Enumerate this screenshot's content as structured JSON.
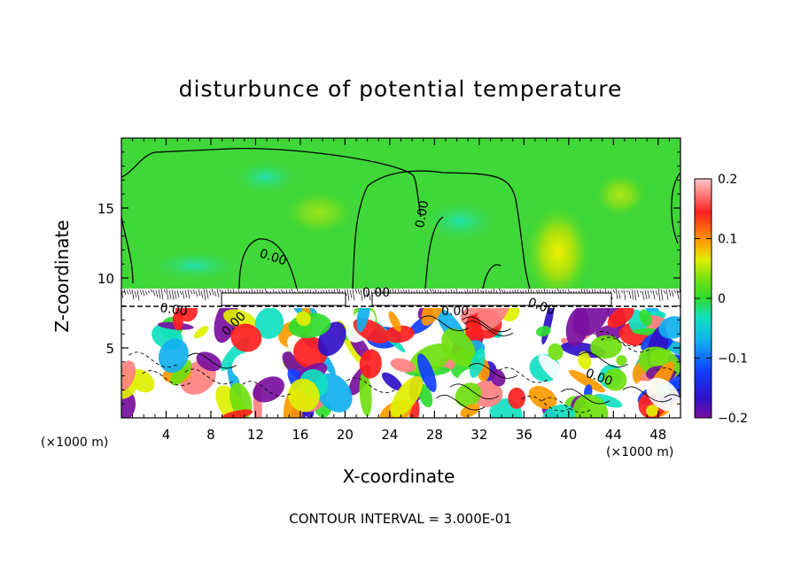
{
  "chart_data": {
    "type": "heatmap",
    "title": "disturbunce of potential temperature",
    "xlabel": "X-coordinate",
    "ylabel": "Z-coordinate",
    "x_unit": "(×1000 m)",
    "z_unit": "(×1000 m)",
    "xlim": [
      0,
      50
    ],
    "ylim": [
      0,
      20
    ],
    "x_ticks": [
      4,
      8,
      12,
      16,
      20,
      24,
      28,
      32,
      36,
      40,
      44,
      48
    ],
    "y_ticks": [
      5,
      10,
      15
    ],
    "colorbar": {
      "min": -0.2,
      "max": 0.2,
      "tick_labels": [
        "0.2",
        "0.1",
        "0",
        "−0.1",
        "−0.2"
      ],
      "tick_values": [
        0.2,
        0.1,
        0,
        -0.1,
        -0.2
      ]
    },
    "contour_labels": [
      "0.00",
      "0.00",
      "0.00",
      "0.00",
      "0.00",
      "0.00",
      "0.00",
      "0.00"
    ],
    "annotation": "CONTOUR INTERVAL = 3.000E-01"
  }
}
